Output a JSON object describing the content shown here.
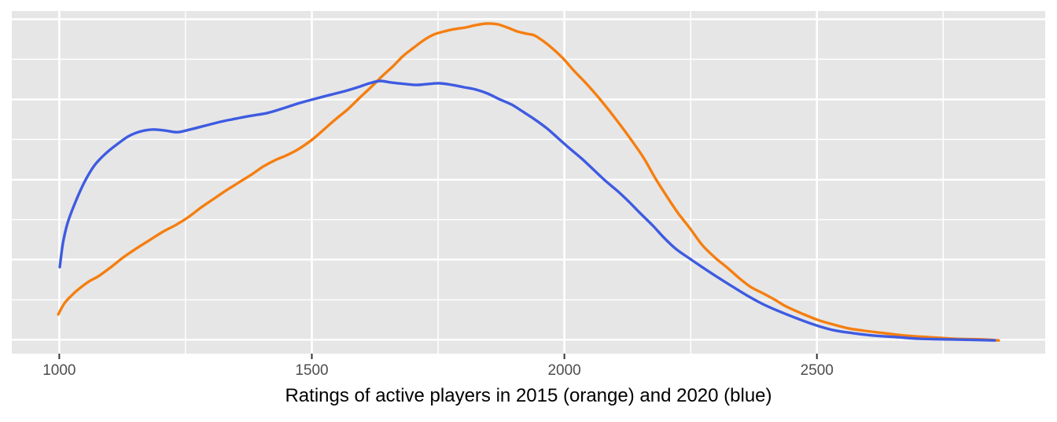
{
  "chart_data": {
    "type": "line",
    "title": "",
    "xlabel": "Ratings of active players in 2015 (orange) and 2020 (blue)",
    "ylabel": "",
    "legend": "none (series identified by color in xlabel text)",
    "grid": "on",
    "panel_bg": "#E6E6E6",
    "grid_color": "#FFFFFF",
    "tick_color": "#333333",
    "tick_label_color": "#4D4D4D",
    "title_color": "#000000",
    "xlim": [
      906,
      2952
    ],
    "ylim": [
      0,
      1.038
    ],
    "y_unit": "relative density (peak of 2015 curve = 1.0, no y-axis labels shown)",
    "x_breaks": [
      {
        "value": 1000,
        "label": "1000",
        "major": true
      },
      {
        "value": 1250,
        "label": "",
        "major": false
      },
      {
        "value": 1500,
        "label": "1500",
        "major": true
      },
      {
        "value": 1750,
        "label": "",
        "major": false
      },
      {
        "value": 2000,
        "label": "2000",
        "major": true
      },
      {
        "value": 2250,
        "label": "",
        "major": false
      },
      {
        "value": 2500,
        "label": "2500",
        "major": true
      },
      {
        "value": 2750,
        "label": "",
        "major": false
      }
    ],
    "y_gridlines": [
      {
        "value": 0.042,
        "major": true
      },
      {
        "value": 0.163,
        "major": false
      },
      {
        "value": 0.285,
        "major": true
      },
      {
        "value": 0.406,
        "major": false
      },
      {
        "value": 0.527,
        "major": true
      },
      {
        "value": 0.649,
        "major": false
      },
      {
        "value": 0.77,
        "major": true
      },
      {
        "value": 0.892,
        "major": false
      },
      {
        "value": 1.013,
        "major": true
      }
    ],
    "series": [
      {
        "name": "2015",
        "color": "#F57E10",
        "stroke_width": 3.4,
        "points": [
          [
            998,
            0.119
          ],
          [
            1010,
            0.152
          ],
          [
            1023,
            0.174
          ],
          [
            1038,
            0.195
          ],
          [
            1057,
            0.217
          ],
          [
            1079,
            0.236
          ],
          [
            1104,
            0.264
          ],
          [
            1128,
            0.293
          ],
          [
            1153,
            0.319
          ],
          [
            1178,
            0.343
          ],
          [
            1205,
            0.369
          ],
          [
            1231,
            0.39
          ],
          [
            1256,
            0.414
          ],
          [
            1281,
            0.443
          ],
          [
            1306,
            0.469
          ],
          [
            1331,
            0.495
          ],
          [
            1356,
            0.519
          ],
          [
            1381,
            0.543
          ],
          [
            1404,
            0.567
          ],
          [
            1427,
            0.586
          ],
          [
            1446,
            0.598
          ],
          [
            1465,
            0.612
          ],
          [
            1483,
            0.629
          ],
          [
            1502,
            0.65
          ],
          [
            1524,
            0.679
          ],
          [
            1547,
            0.71
          ],
          [
            1571,
            0.74
          ],
          [
            1594,
            0.774
          ],
          [
            1617,
            0.807
          ],
          [
            1641,
            0.843
          ],
          [
            1661,
            0.871
          ],
          [
            1681,
            0.902
          ],
          [
            1701,
            0.926
          ],
          [
            1722,
            0.95
          ],
          [
            1742,
            0.967
          ],
          [
            1762,
            0.976
          ],
          [
            1782,
            0.983
          ],
          [
            1804,
            0.988
          ],
          [
            1824,
            0.995
          ],
          [
            1845,
            1.0
          ],
          [
            1867,
            0.998
          ],
          [
            1887,
            0.988
          ],
          [
            1907,
            0.976
          ],
          [
            1926,
            0.969
          ],
          [
            1941,
            0.964
          ],
          [
            1960,
            0.945
          ],
          [
            1979,
            0.921
          ],
          [
            1997,
            0.895
          ],
          [
            2019,
            0.857
          ],
          [
            2043,
            0.819
          ],
          [
            2066,
            0.779
          ],
          [
            2089,
            0.736
          ],
          [
            2113,
            0.688
          ],
          [
            2136,
            0.64
          ],
          [
            2159,
            0.588
          ],
          [
            2181,
            0.529
          ],
          [
            2203,
            0.476
          ],
          [
            2225,
            0.426
          ],
          [
            2248,
            0.381
          ],
          [
            2273,
            0.329
          ],
          [
            2299,
            0.29
          ],
          [
            2323,
            0.26
          ],
          [
            2346,
            0.229
          ],
          [
            2369,
            0.202
          ],
          [
            2393,
            0.183
          ],
          [
            2416,
            0.164
          ],
          [
            2439,
            0.143
          ],
          [
            2471,
            0.121
          ],
          [
            2502,
            0.102
          ],
          [
            2533,
            0.088
          ],
          [
            2564,
            0.076
          ],
          [
            2595,
            0.069
          ],
          [
            2634,
            0.062
          ],
          [
            2673,
            0.055
          ],
          [
            2720,
            0.05
          ],
          [
            2774,
            0.045
          ],
          [
            2829,
            0.043
          ],
          [
            2860,
            0.04
          ]
        ]
      },
      {
        "name": "2020",
        "color": "#3E5BE1",
        "stroke_width": 3.4,
        "points": [
          [
            1001,
            0.262
          ],
          [
            1007,
            0.333
          ],
          [
            1016,
            0.393
          ],
          [
            1029,
            0.448
          ],
          [
            1049,
            0.517
          ],
          [
            1069,
            0.569
          ],
          [
            1091,
            0.605
          ],
          [
            1116,
            0.636
          ],
          [
            1139,
            0.66
          ],
          [
            1163,
            0.674
          ],
          [
            1186,
            0.679
          ],
          [
            1209,
            0.676
          ],
          [
            1234,
            0.671
          ],
          [
            1259,
            0.679
          ],
          [
            1287,
            0.69
          ],
          [
            1318,
            0.702
          ],
          [
            1350,
            0.712
          ],
          [
            1381,
            0.721
          ],
          [
            1412,
            0.729
          ],
          [
            1443,
            0.743
          ],
          [
            1471,
            0.757
          ],
          [
            1499,
            0.769
          ],
          [
            1529,
            0.781
          ],
          [
            1560,
            0.793
          ],
          [
            1591,
            0.807
          ],
          [
            1614,
            0.819
          ],
          [
            1635,
            0.826
          ],
          [
            1658,
            0.821
          ],
          [
            1684,
            0.817
          ],
          [
            1708,
            0.814
          ],
          [
            1731,
            0.817
          ],
          [
            1754,
            0.819
          ],
          [
            1778,
            0.814
          ],
          [
            1801,
            0.807
          ],
          [
            1825,
            0.8
          ],
          [
            1848,
            0.788
          ],
          [
            1871,
            0.771
          ],
          [
            1895,
            0.755
          ],
          [
            1918,
            0.733
          ],
          [
            1941,
            0.71
          ],
          [
            1965,
            0.683
          ],
          [
            1988,
            0.652
          ],
          [
            2011,
            0.621
          ],
          [
            2035,
            0.59
          ],
          [
            2058,
            0.557
          ],
          [
            2081,
            0.524
          ],
          [
            2105,
            0.493
          ],
          [
            2128,
            0.46
          ],
          [
            2151,
            0.424
          ],
          [
            2175,
            0.388
          ],
          [
            2198,
            0.35
          ],
          [
            2221,
            0.317
          ],
          [
            2248,
            0.288
          ],
          [
            2273,
            0.262
          ],
          [
            2299,
            0.236
          ],
          [
            2331,
            0.205
          ],
          [
            2362,
            0.176
          ],
          [
            2393,
            0.15
          ],
          [
            2424,
            0.129
          ],
          [
            2455,
            0.11
          ],
          [
            2494,
            0.088
          ],
          [
            2533,
            0.071
          ],
          [
            2572,
            0.062
          ],
          [
            2611,
            0.055
          ],
          [
            2658,
            0.05
          ],
          [
            2704,
            0.045
          ],
          [
            2767,
            0.043
          ],
          [
            2852,
            0.04
          ]
        ]
      }
    ],
    "tick_labels_font_px": 19,
    "title_font_px": 24
  }
}
